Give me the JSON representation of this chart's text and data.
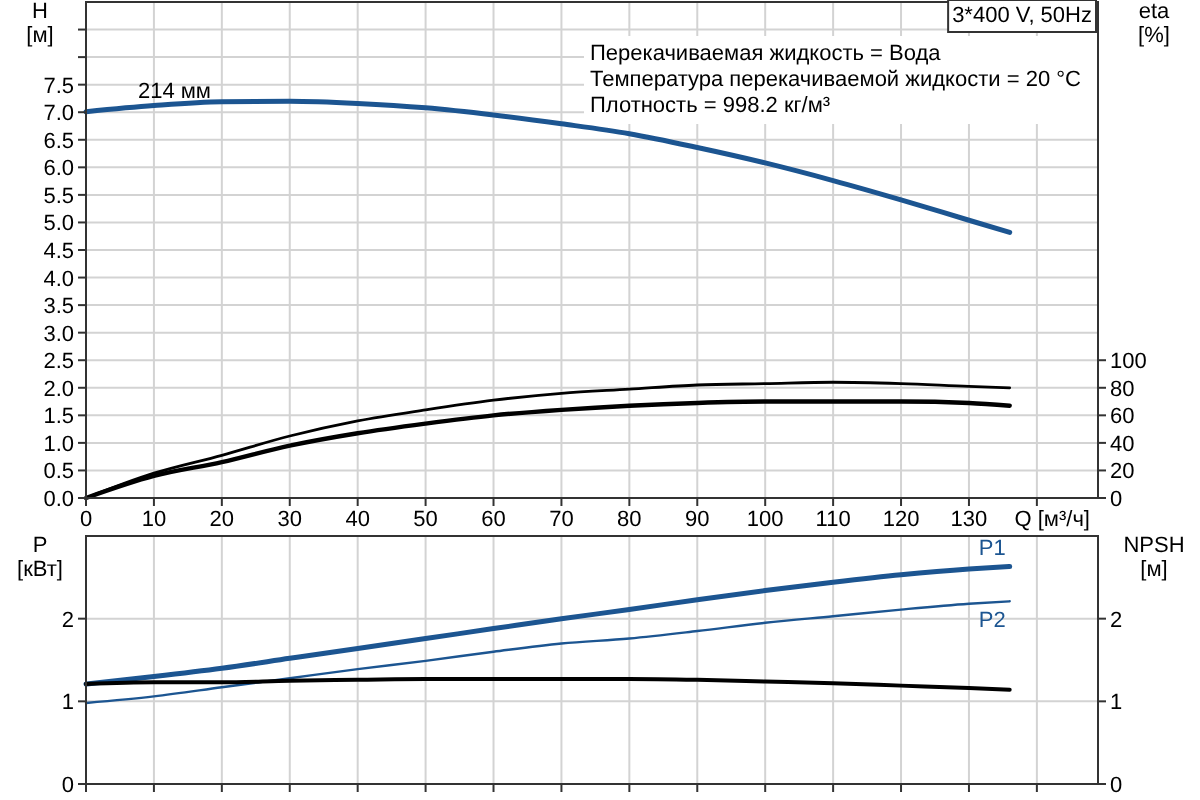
{
  "chart_data": [
    {
      "type": "line",
      "title": "3*400 V, 50Hz",
      "ylabel": "H [м]",
      "y2label": "eta [%]",
      "xlabel": "Q [м³/ч]",
      "annotations": [
        "Перекачиваемая жидкость = Вода",
        "Температура перекачиваемой жидкости = 20 °C",
        "Плотность = 998.2 кг/м³"
      ],
      "x": [
        0,
        10,
        20,
        30,
        40,
        50,
        60,
        70,
        80,
        90,
        100,
        110,
        120,
        130,
        136
      ],
      "xlim": [
        0,
        149
      ],
      "xticks": [
        0,
        10,
        20,
        30,
        40,
        50,
        60,
        70,
        80,
        90,
        100,
        110,
        120,
        130,
        {
          "value": 140,
          "label": null
        }
      ],
      "ylim": [
        0,
        9
      ],
      "yticks": [
        {
          "value": 0,
          "label": "0.0"
        },
        {
          "value": 0.5,
          "label": "0.5"
        },
        {
          "value": 1,
          "label": "1.0"
        },
        {
          "value": 1.5,
          "label": "1.5"
        },
        {
          "value": 2,
          "label": "2.0"
        },
        {
          "value": 2.5,
          "label": "2.5"
        },
        {
          "value": 3,
          "label": "3.0"
        },
        {
          "value": 3.5,
          "label": "3.5"
        },
        {
          "value": 4,
          "label": "4.0"
        },
        {
          "value": 4.5,
          "label": "4.5"
        },
        {
          "value": 5,
          "label": "5.0"
        },
        {
          "value": 5.5,
          "label": "5.5"
        },
        {
          "value": 6,
          "label": "6.0"
        },
        {
          "value": 6.5,
          "label": "6.5"
        },
        {
          "value": 7,
          "label": "7.0"
        },
        {
          "value": 7.5,
          "label": "7.5"
        },
        {
          "value": 8,
          "label": null
        },
        {
          "value": 8.5,
          "label": null
        }
      ],
      "y2lim": [
        0,
        360
      ],
      "y2ticks": [
        0,
        20,
        40,
        60,
        80,
        100
      ],
      "grid": true,
      "series": [
        {
          "name": "214 мм",
          "color": "#1c5591",
          "values": [
            7.01,
            7.12,
            7.19,
            7.2,
            7.16,
            7.08,
            6.95,
            6.79,
            6.61,
            6.36,
            6.08,
            5.76,
            5.41,
            5.04,
            4.82
          ]
        },
        {
          "color": "#000000",
          "axis": "y2",
          "values": [
            0,
            18,
            31,
            45,
            56,
            64,
            71,
            76,
            79,
            82,
            83,
            84,
            83,
            81,
            80
          ]
        },
        {
          "color": "#000000",
          "axis": "y2",
          "values": [
            0,
            16,
            26,
            38,
            47,
            54,
            60,
            64,
            67,
            69,
            70,
            70,
            70,
            69,
            67
          ]
        }
      ]
    },
    {
      "type": "line",
      "ylabel": "P [кВт]",
      "y2label": "NPSH [м]",
      "tick_labels": "y",
      "x": [
        0,
        10,
        20,
        30,
        40,
        50,
        60,
        70,
        80,
        90,
        100,
        110,
        120,
        130,
        136
      ],
      "xlim": [
        0,
        149
      ],
      "xticks": [
        0,
        10,
        20,
        30,
        40,
        50,
        60,
        70,
        80,
        90,
        100,
        110,
        120,
        130,
        {
          "value": 140,
          "label": null
        }
      ],
      "ylim": [
        0,
        3
      ],
      "yticks": [
        0,
        1,
        2
      ],
      "y2lim": [
        0,
        3
      ],
      "y2ticks": [
        0,
        1,
        2
      ],
      "grid": true,
      "series": [
        {
          "name": "P1",
          "color": "#1c5591",
          "values": [
            1.21,
            1.3,
            1.4,
            1.52,
            1.64,
            1.76,
            1.88,
            2.0,
            2.11,
            2.23,
            2.34,
            2.44,
            2.53,
            2.6,
            2.63
          ]
        },
        {
          "name": "P2",
          "color": "#1c5591",
          "values": [
            0.98,
            1.06,
            1.17,
            1.28,
            1.39,
            1.49,
            1.6,
            1.7,
            1.76,
            1.85,
            1.95,
            2.03,
            2.11,
            2.18,
            2.21
          ]
        },
        {
          "color": "#000000",
          "axis": "y2",
          "values": [
            1.21,
            1.23,
            1.23,
            1.25,
            1.26,
            1.27,
            1.27,
            1.27,
            1.27,
            1.26,
            1.24,
            1.22,
            1.19,
            1.16,
            1.14
          ]
        }
      ]
    }
  ]
}
